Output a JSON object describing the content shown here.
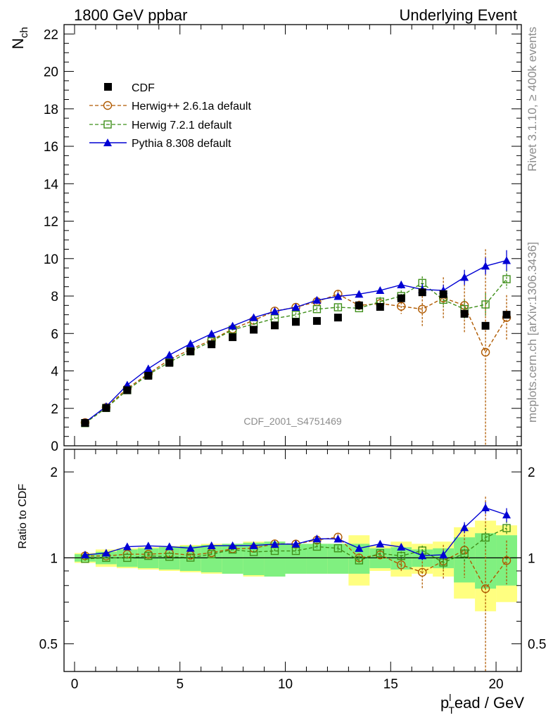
{
  "header": {
    "left": "1800 GeV ppbar",
    "right": "Underlying Event"
  },
  "side": {
    "rivet": "Rivet 3.1.10, ≥ 400k events",
    "mcplots": "mcplots.cern.ch [arXiv:1306.3436]"
  },
  "watermark": "CDF_2001_S4751469",
  "colors": {
    "cdf": "#000000",
    "herwigpp": "#b05a00",
    "herwig7": "#3f8f1a",
    "pythia": "#0000d4",
    "band_inner": "#80f080",
    "band_outer": "#ffff80"
  },
  "chart_data": {
    "type": "line",
    "title": "Underlying Event",
    "xlabel_main": "p",
    "xlabel_sub": "T",
    "xlabel_sup": "l",
    "xlabel_rest": "ead / GeV",
    "ylabel_main": "N",
    "ylabel_sub": "ch",
    "ratio_ylabel": "Ratio to CDF",
    "xlim": [
      -0.5,
      21.2
    ],
    "ylim": [
      0,
      22.5
    ],
    "ratio_ylim": [
      0.4,
      2.4
    ],
    "x_ticks": [
      0,
      5,
      10,
      15,
      20
    ],
    "y_ticks": [
      0,
      2,
      4,
      6,
      8,
      10,
      12,
      14,
      16,
      18,
      20,
      22
    ],
    "ratio_ticks": [
      0.5,
      1,
      2
    ],
    "x": [
      0.5,
      1.5,
      2.5,
      3.5,
      4.5,
      5.5,
      6.5,
      7.5,
      8.5,
      9.5,
      10.5,
      11.5,
      12.5,
      13.5,
      14.5,
      15.5,
      16.5,
      17.5,
      18.5,
      19.5,
      20.5
    ],
    "legend": [
      "CDF",
      "Herwig++ 2.6.1a default",
      "Herwig 7.2.1 default",
      "Pythia 8.308 default"
    ],
    "series": [
      {
        "name": "CDF",
        "values": [
          1.22,
          2.02,
          2.97,
          3.74,
          4.43,
          5.04,
          5.42,
          5.8,
          6.2,
          6.43,
          6.62,
          6.67,
          6.85,
          7.5,
          7.42,
          7.88,
          8.2,
          8.1,
          7.05,
          6.41,
          7.0
        ],
        "band_inner": [
          0.03,
          0.05,
          0.07,
          0.08,
          0.09,
          0.1,
          0.11,
          0.12,
          0.13,
          0.14,
          0.12,
          0.12,
          0.12,
          0.12,
          0.08,
          0.09,
          0.07,
          0.08,
          0.18,
          0.22,
          0.2
        ],
        "band_outer": [
          0.04,
          0.07,
          0.08,
          0.09,
          0.1,
          0.11,
          0.12,
          0.12,
          0.14,
          0.14,
          0.12,
          0.12,
          0.12,
          0.2,
          0.1,
          0.14,
          0.12,
          0.14,
          0.28,
          0.35,
          0.3
        ]
      },
      {
        "name": "Herwig++ 2.6.1a default",
        "values": [
          1.24,
          2.05,
          3.06,
          3.85,
          4.6,
          5.15,
          5.65,
          6.24,
          6.7,
          7.2,
          7.4,
          7.7,
          8.1,
          7.5,
          7.6,
          7.45,
          7.3,
          7.9,
          7.5,
          5.0,
          6.85
        ],
        "errors": [
          0.02,
          0.03,
          0.04,
          0.05,
          0.06,
          0.06,
          0.07,
          0.08,
          0.08,
          0.1,
          0.12,
          0.15,
          0.2,
          0.25,
          0.3,
          0.4,
          0.9,
          1.1,
          1.5,
          5.5,
          1.2
        ]
      },
      {
        "name": "Herwig 7.2.1 default",
        "values": [
          1.21,
          2.02,
          2.97,
          3.8,
          4.47,
          5.05,
          5.58,
          6.2,
          6.5,
          6.8,
          7.0,
          7.3,
          7.4,
          7.35,
          7.7,
          8.0,
          8.7,
          7.8,
          7.3,
          7.55,
          8.9
        ],
        "errors": [
          0.02,
          0.03,
          0.04,
          0.05,
          0.06,
          0.06,
          0.07,
          0.08,
          0.08,
          0.1,
          0.12,
          0.12,
          0.15,
          0.2,
          0.25,
          0.3,
          0.35,
          0.4,
          0.5,
          0.6,
          0.5
        ]
      },
      {
        "name": "Pythia 8.308 default",
        "values": [
          1.25,
          2.1,
          3.25,
          4.12,
          4.85,
          5.45,
          5.98,
          6.4,
          6.85,
          7.18,
          7.4,
          7.78,
          7.98,
          8.1,
          8.3,
          8.6,
          8.35,
          8.3,
          9.0,
          9.6,
          9.9
        ],
        "errors": [
          0.02,
          0.03,
          0.04,
          0.05,
          0.05,
          0.06,
          0.06,
          0.07,
          0.08,
          0.08,
          0.1,
          0.1,
          0.12,
          0.15,
          0.18,
          0.2,
          0.3,
          0.3,
          0.4,
          0.45,
          0.55
        ]
      }
    ]
  }
}
